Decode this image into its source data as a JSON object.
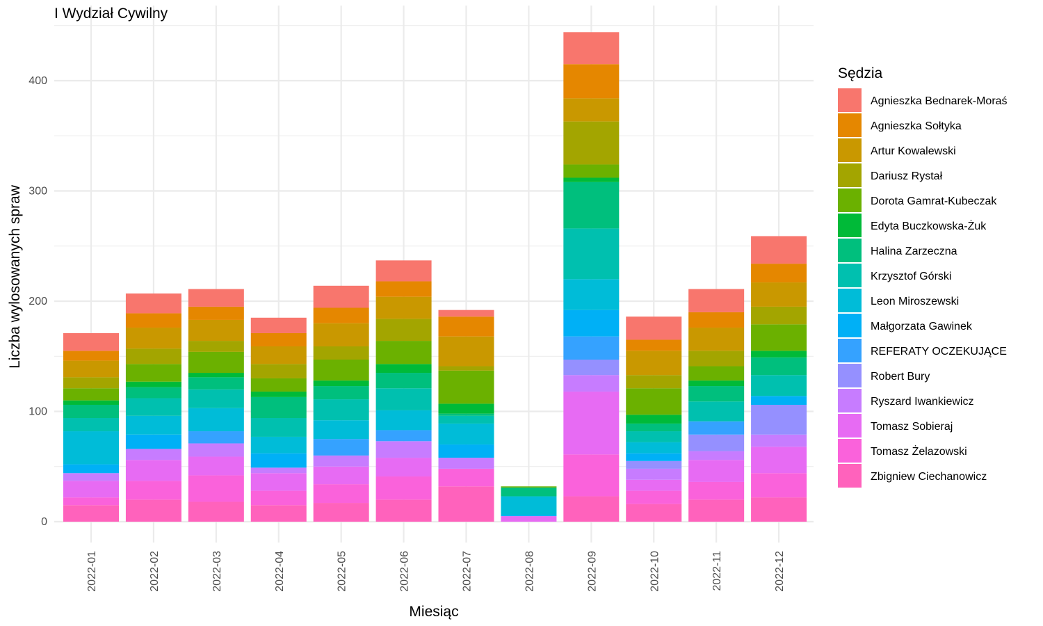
{
  "chart_data": {
    "type": "bar",
    "stacked": true,
    "title": "I Wydział Cywilny",
    "xlabel": "Miesiąc",
    "ylabel": "Liczba wylosowanych spraw",
    "ylim": [
      0,
      445
    ],
    "yticks": [
      0,
      100,
      200,
      300,
      400
    ],
    "grid": true,
    "legend_title": "Sędzia",
    "legend_position": "right",
    "categories": [
      "2022-01",
      "2022-02",
      "2022-03",
      "2022-04",
      "2022-05",
      "2022-06",
      "2022-07",
      "2022-08",
      "2022-09",
      "2022-10",
      "2022-11",
      "2022-12"
    ],
    "series": [
      {
        "name": "Agnieszka Bednarek-Moraś",
        "color": "#F8766D",
        "values": [
          16,
          18,
          16,
          14,
          20,
          19,
          6,
          0,
          29,
          21,
          21,
          25
        ]
      },
      {
        "name": "Agnieszka Sołtyka",
        "color": "#E58700",
        "values": [
          9,
          13,
          12,
          12,
          14,
          14,
          18,
          0,
          31,
          10,
          14,
          17
        ]
      },
      {
        "name": "Artur Kowalewski",
        "color": "#C99800",
        "values": [
          15,
          19,
          19,
          16,
          21,
          20,
          27,
          0,
          21,
          22,
          21,
          22
        ]
      },
      {
        "name": "Dariusz Rystał",
        "color": "#A3A500",
        "values": [
          10,
          14,
          10,
          13,
          12,
          20,
          4,
          0,
          39,
          12,
          14,
          16
        ]
      },
      {
        "name": "Dorota Gamrat-Kubeczak",
        "color": "#6BB100",
        "values": [
          11,
          16,
          19,
          12,
          19,
          21,
          30,
          1,
          12,
          24,
          13,
          24
        ]
      },
      {
        "name": "Edyta Buczkowska-Żuk",
        "color": "#00BA38",
        "values": [
          4,
          5,
          4,
          5,
          5,
          8,
          9,
          0,
          4,
          8,
          5,
          6
        ]
      },
      {
        "name": "Halina Zarzeczna",
        "color": "#00BF7D",
        "values": [
          12,
          10,
          11,
          19,
          12,
          14,
          2,
          8,
          42,
          7,
          14,
          16
        ]
      },
      {
        "name": "Krzysztof Górski",
        "color": "#00C0AF",
        "values": [
          12,
          16,
          17,
          17,
          19,
          20,
          7,
          0,
          46,
          10,
          18,
          19
        ]
      },
      {
        "name": "Leon Miroszewski",
        "color": "#00BCD8",
        "values": [
          30,
          17,
          21,
          15,
          17,
          18,
          19,
          17,
          28,
          10,
          0,
          0
        ]
      },
      {
        "name": "Małgorzata Gawinek",
        "color": "#00B0F6",
        "values": [
          8,
          13,
          0,
          13,
          0,
          0,
          12,
          1,
          24,
          7,
          0,
          8
        ]
      },
      {
        "name": "REFERATY OCZEKUJĄCE",
        "color": "#35A2FF",
        "values": [
          0,
          0,
          11,
          0,
          15,
          10,
          0,
          0,
          21,
          0,
          12,
          0
        ]
      },
      {
        "name": "Robert Bury",
        "color": "#9590FF",
        "values": [
          0,
          0,
          0,
          0,
          0,
          0,
          0,
          0,
          14,
          7,
          15,
          27
        ]
      },
      {
        "name": "Ryszard Iwankiewicz",
        "color": "#C77CFF",
        "values": [
          7,
          10,
          12,
          5,
          10,
          15,
          10,
          0,
          15,
          10,
          8,
          11
        ]
      },
      {
        "name": "Tomasz Sobieraj",
        "color": "#E76BF3",
        "values": [
          15,
          19,
          17,
          16,
          16,
          17,
          0,
          5,
          57,
          10,
          20,
          24
        ]
      },
      {
        "name": "Tomasz Żelazowski",
        "color": "#FA62DB",
        "values": [
          7,
          17,
          24,
          13,
          17,
          21,
          16,
          0,
          38,
          12,
          16,
          22
        ]
      },
      {
        "name": "Zbigniew Ciechanowicz",
        "color": "#FF62BC",
        "values": [
          15,
          20,
          18,
          15,
          17,
          20,
          32,
          0,
          23,
          16,
          20,
          22
        ]
      }
    ]
  }
}
